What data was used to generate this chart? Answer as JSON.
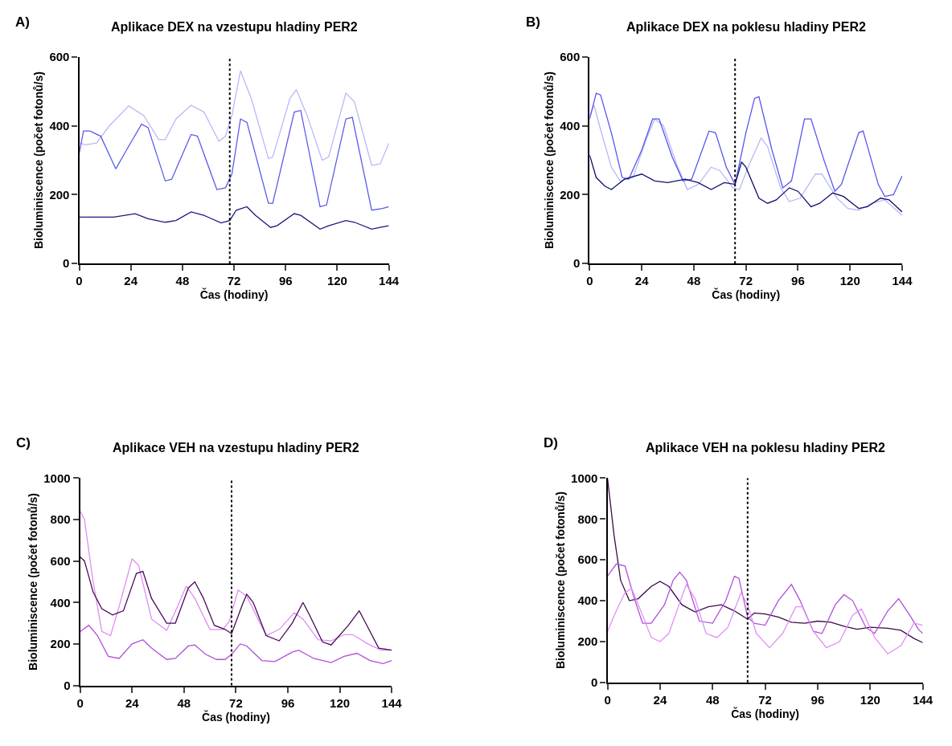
{
  "chart_data": [
    {
      "type": "line",
      "title": "Aplikace DEX na vzestupu hladiny PER2",
      "annotations": [
        "A)"
      ],
      "xlabel": "Čas (hodiny)",
      "ylabel": "Bioluminiscence (počet fotonů/s)",
      "xlim": [
        0,
        144
      ],
      "xticks": [
        0,
        24,
        48,
        72,
        96,
        120,
        144
      ],
      "ylim": [
        0,
        600
      ],
      "yticks": [
        0,
        200,
        400,
        600
      ],
      "marker": "none",
      "line_style": "solid",
      "ref_lines": [
        {
          "axis": "x",
          "value": 70,
          "line_style": "dotted",
          "color": "#000000"
        }
      ],
      "series": [
        {
          "color": "#b8b8f8",
          "x": [
            0,
            3,
            8,
            14,
            23,
            30,
            37,
            40,
            45,
            52,
            58,
            65,
            68,
            71,
            75,
            80,
            88,
            90,
            98,
            101,
            106,
            113,
            116,
            124,
            128,
            136,
            140,
            144
          ],
          "values": [
            350,
            345,
            350,
            400,
            458,
            430,
            360,
            360,
            420,
            460,
            440,
            355,
            370,
            430,
            560,
            480,
            305,
            310,
            480,
            505,
            430,
            300,
            310,
            495,
            470,
            285,
            290,
            350
          ]
        },
        {
          "color": "#5a5aee",
          "x": [
            0,
            2,
            5,
            10,
            17,
            22,
            29,
            32,
            40,
            43,
            52,
            55,
            64,
            68,
            71,
            75,
            78,
            88,
            90,
            100,
            103,
            112,
            115,
            124,
            127,
            136,
            141,
            144
          ],
          "values": [
            320,
            385,
            385,
            370,
            275,
            330,
            405,
            395,
            240,
            245,
            375,
            370,
            215,
            220,
            260,
            420,
            410,
            175,
            175,
            440,
            445,
            165,
            170,
            420,
            425,
            155,
            160,
            165
          ]
        },
        {
          "color": "#1a1a80",
          "x": [
            0,
            10,
            16,
            26,
            32,
            40,
            45,
            52,
            58,
            66,
            70,
            73,
            78,
            82,
            89,
            92,
            100,
            103,
            112,
            116,
            124,
            128,
            136,
            140,
            144
          ],
          "values": [
            135,
            135,
            135,
            145,
            130,
            120,
            125,
            150,
            140,
            118,
            125,
            155,
            165,
            140,
            105,
            110,
            145,
            140,
            100,
            110,
            125,
            120,
            100,
            105,
            110
          ]
        }
      ]
    },
    {
      "type": "line",
      "title": "Aplikace DEX na poklesu hladiny PER2",
      "annotations": [
        "B)"
      ],
      "xlabel": "Čas (hodiny)",
      "ylabel": "Bioluminiscence (počet fotonů/s)",
      "xlim": [
        0,
        144
      ],
      "xticks": [
        0,
        24,
        48,
        72,
        96,
        120,
        144
      ],
      "ylim": [
        0,
        600
      ],
      "yticks": [
        0,
        200,
        400,
        600
      ],
      "marker": "none",
      "line_style": "solid",
      "ref_lines": [
        {
          "axis": "x",
          "value": 67,
          "line_style": "dotted",
          "color": "#000000"
        }
      ],
      "series": [
        {
          "color": "#b8b8f5",
          "x": [
            0,
            2,
            5,
            10,
            14,
            20,
            26,
            30,
            34,
            40,
            45,
            50,
            56,
            60,
            66,
            69,
            73,
            79,
            82,
            88,
            92,
            97,
            104,
            107,
            114,
            119,
            124,
            130,
            136,
            144
          ],
          "values": [
            430,
            460,
            390,
            280,
            240,
            250,
            360,
            420,
            400,
            290,
            215,
            230,
            280,
            270,
            220,
            215,
            280,
            365,
            340,
            220,
            180,
            190,
            260,
            260,
            190,
            160,
            155,
            175,
            185,
            140
          ]
        },
        {
          "color": "#5555ee",
          "x": [
            0,
            3,
            5,
            10,
            15,
            18,
            24,
            29,
            32,
            38,
            43,
            47,
            55,
            58,
            63,
            67,
            72,
            76,
            78,
            84,
            89,
            93,
            99,
            102,
            108,
            113,
            116,
            124,
            126,
            133,
            136,
            140,
            144
          ],
          "values": [
            420,
            495,
            490,
            380,
            250,
            245,
            330,
            420,
            420,
            310,
            240,
            245,
            385,
            380,
            280,
            230,
            380,
            480,
            485,
            330,
            220,
            240,
            420,
            420,
            300,
            210,
            230,
            380,
            385,
            230,
            195,
            200,
            255
          ]
        },
        {
          "color": "#101070",
          "x": [
            0,
            3,
            7,
            10,
            16,
            24,
            30,
            36,
            44,
            50,
            56,
            62,
            67,
            70,
            72,
            78,
            82,
            86,
            92,
            96,
            102,
            106,
            112,
            117,
            124,
            128,
            134,
            138,
            144
          ],
          "values": [
            315,
            250,
            225,
            215,
            245,
            260,
            240,
            235,
            245,
            235,
            215,
            235,
            230,
            295,
            280,
            190,
            175,
            185,
            220,
            210,
            165,
            175,
            205,
            195,
            160,
            165,
            190,
            185,
            150
          ]
        }
      ]
    },
    {
      "type": "line",
      "title": "Aplikace VEH na vzestupu hladiny PER2",
      "annotations": [
        "C)"
      ],
      "xlabel": "Čas (hodiny)",
      "ylabel": "Bioluminiscence (počet fotonů/s)",
      "xlim": [
        0,
        144
      ],
      "xticks": [
        0,
        24,
        48,
        72,
        96,
        120,
        144
      ],
      "ylim": [
        0,
        1000
      ],
      "yticks": [
        0,
        200,
        400,
        600,
        800,
        1000
      ],
      "marker": "none",
      "line_style": "solid",
      "ref_lines": [
        {
          "axis": "x",
          "value": 70,
          "line_style": "dotted",
          "color": "#000000"
        }
      ],
      "series": [
        {
          "color": "#e08cf5",
          "x": [
            0,
            2,
            6,
            10,
            14,
            18,
            24,
            27,
            33,
            40,
            45,
            49,
            53,
            60,
            66,
            69,
            73,
            77,
            86,
            92,
            99,
            103,
            110,
            116,
            122,
            126,
            133,
            139,
            144
          ],
          "values": [
            840,
            800,
            500,
            260,
            240,
            380,
            610,
            580,
            320,
            265,
            380,
            480,
            420,
            270,
            270,
            310,
            460,
            430,
            240,
            270,
            350,
            320,
            220,
            215,
            245,
            245,
            200,
            170,
            170
          ]
        },
        {
          "color": "#4a0a5a",
          "x": [
            0,
            2,
            6,
            10,
            15,
            20,
            26,
            29,
            33,
            40,
            44,
            50,
            53,
            57,
            62,
            67,
            70,
            75,
            77,
            80,
            86,
            92,
            98,
            103,
            106,
            112,
            116,
            124,
            129,
            133,
            138,
            144
          ],
          "values": [
            620,
            600,
            450,
            370,
            340,
            360,
            540,
            550,
            420,
            300,
            300,
            470,
            500,
            420,
            290,
            270,
            250,
            390,
            440,
            400,
            240,
            215,
            300,
            400,
            340,
            210,
            195,
            290,
            360,
            280,
            180,
            170
          ]
        },
        {
          "color": "#b04ed8",
          "x": [
            0,
            4,
            8,
            13,
            18,
            24,
            29,
            33,
            40,
            44,
            50,
            53,
            58,
            63,
            67,
            70,
            74,
            77,
            84,
            90,
            98,
            101,
            108,
            116,
            122,
            128,
            134,
            140,
            144
          ],
          "values": [
            260,
            290,
            240,
            140,
            130,
            200,
            220,
            180,
            125,
            130,
            190,
            195,
            150,
            125,
            125,
            150,
            200,
            190,
            120,
            115,
            160,
            170,
            130,
            110,
            140,
            155,
            120,
            105,
            120
          ]
        }
      ]
    },
    {
      "type": "line",
      "title": "Aplikace VEH na poklesu hladiny PER2",
      "annotations": [
        "D)"
      ],
      "xlabel": "Čas (hodiny)",
      "ylabel": "Bioluminiscence (počet fotonů/s)",
      "xlim": [
        0,
        144
      ],
      "xticks": [
        0,
        24,
        48,
        72,
        96,
        120,
        144
      ],
      "ylim": [
        0,
        1000
      ],
      "yticks": [
        0,
        200,
        400,
        600,
        800,
        1000
      ],
      "marker": "none",
      "line_style": "solid",
      "ref_lines": [
        {
          "axis": "x",
          "value": 64,
          "line_style": "dotted",
          "color": "#000000"
        }
      ],
      "series": [
        {
          "color": "#3a0a4a",
          "x": [
            0,
            3,
            6,
            10,
            14,
            20,
            24,
            28,
            34,
            40,
            46,
            52,
            58,
            64,
            67,
            72,
            78,
            84,
            90,
            96,
            102,
            108,
            114,
            120,
            128,
            134,
            140,
            144
          ],
          "values": [
            1000,
            720,
            500,
            400,
            410,
            470,
            495,
            470,
            380,
            345,
            370,
            380,
            350,
            310,
            340,
            335,
            320,
            295,
            290,
            300,
            295,
            275,
            260,
            270,
            265,
            255,
            215,
            195
          ]
        },
        {
          "color": "#b050d8",
          "x": [
            0,
            4,
            8,
            12,
            16,
            20,
            26,
            30,
            33,
            36,
            42,
            48,
            54,
            58,
            60,
            64,
            67,
            72,
            78,
            84,
            88,
            94,
            98,
            104,
            108,
            112,
            118,
            122,
            128,
            133,
            138,
            142,
            144
          ],
          "values": [
            520,
            580,
            570,
            420,
            290,
            290,
            380,
            500,
            540,
            500,
            300,
            290,
            400,
            520,
            510,
            320,
            290,
            280,
            400,
            480,
            400,
            250,
            240,
            380,
            430,
            400,
            270,
            240,
            350,
            410,
            330,
            260,
            240
          ]
        },
        {
          "color": "#e090f5",
          "x": [
            0,
            4,
            8,
            11,
            16,
            20,
            24,
            28,
            34,
            36,
            40,
            45,
            50,
            55,
            61,
            64,
            68,
            74,
            80,
            86,
            89,
            94,
            100,
            106,
            112,
            116,
            122,
            128,
            134,
            140,
            144
          ],
          "values": [
            250,
            350,
            440,
            460,
            330,
            220,
            200,
            240,
            420,
            480,
            410,
            240,
            220,
            270,
            440,
            380,
            240,
            170,
            240,
            370,
            370,
            250,
            170,
            200,
            330,
            360,
            220,
            140,
            180,
            290,
            280
          ]
        }
      ]
    }
  ]
}
